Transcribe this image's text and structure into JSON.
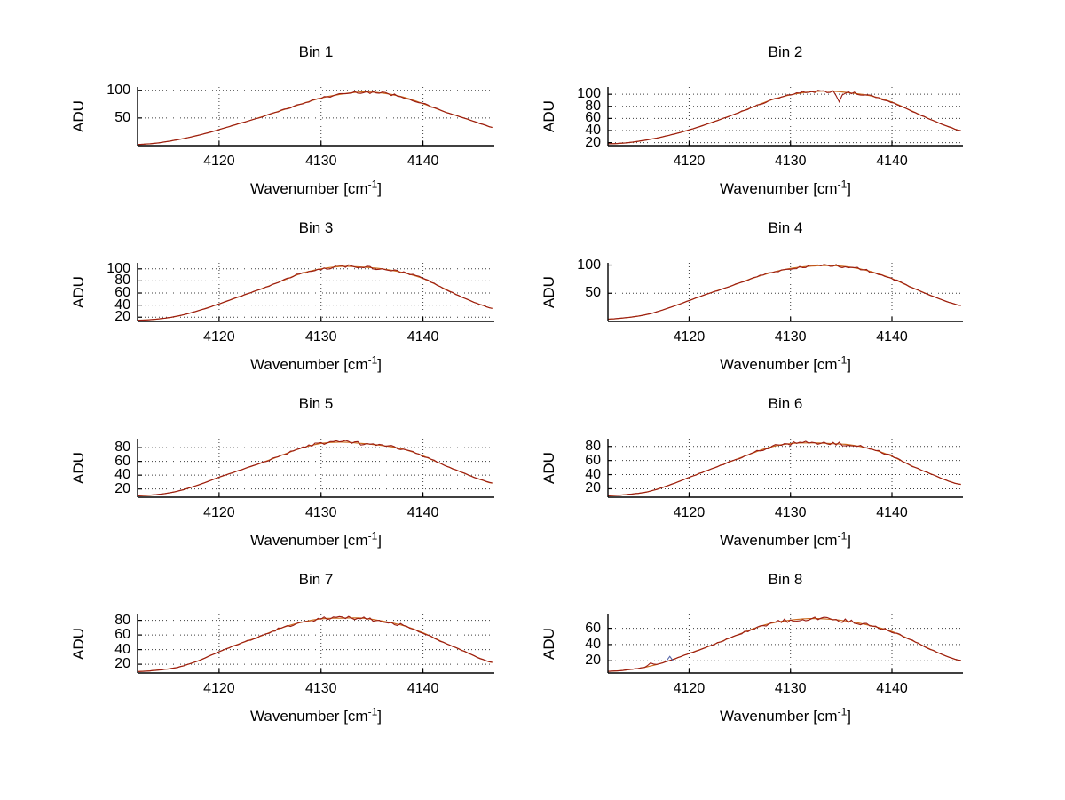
{
  "chart_data": {
    "type": "line",
    "layout": "4x2 grid of subplots",
    "ylabel": "ADU",
    "xlabel_main": "Wavenumber [cm",
    "xlabel_sup": "-1",
    "xlabel_end": "]",
    "xlim": [
      4112,
      4147
    ],
    "x_ticks": [
      4120,
      4130,
      4140
    ],
    "grid": "dotted",
    "legend": "none",
    "colors": {
      "data_line": "#9a1b12",
      "fit_line": "#cc6a1e",
      "axis": "#000000",
      "grid_dots": "#3c3c3c",
      "background": "#ffffff"
    },
    "bins": [
      {
        "title": "Bin 1",
        "ylim": [
          0,
          106
        ],
        "y_ticks": [
          50,
          100
        ],
        "points": [
          [
            4112,
            2
          ],
          [
            4114,
            5
          ],
          [
            4116,
            11
          ],
          [
            4118,
            19
          ],
          [
            4120,
            29
          ],
          [
            4122,
            40
          ],
          [
            4124,
            51
          ],
          [
            4126,
            63
          ],
          [
            4128,
            75
          ],
          [
            4130,
            86
          ],
          [
            4132,
            93
          ],
          [
            4134,
            97
          ],
          [
            4136,
            95
          ],
          [
            4138,
            88
          ],
          [
            4140,
            76
          ],
          [
            4142,
            62
          ],
          [
            4144,
            50
          ],
          [
            4146,
            38
          ],
          [
            4147,
            32
          ]
        ],
        "spikes": [],
        "artifacts": []
      },
      {
        "title": "Bin 2",
        "ylim": [
          15,
          112
        ],
        "y_ticks": [
          20,
          40,
          60,
          80,
          100
        ],
        "points": [
          [
            4112,
            18
          ],
          [
            4114,
            20
          ],
          [
            4116,
            25
          ],
          [
            4118,
            32
          ],
          [
            4120,
            41
          ],
          [
            4122,
            52
          ],
          [
            4124,
            64
          ],
          [
            4126,
            77
          ],
          [
            4128,
            90
          ],
          [
            4130,
            99
          ],
          [
            4132,
            104
          ],
          [
            4134,
            105
          ],
          [
            4136,
            102
          ],
          [
            4138,
            97
          ],
          [
            4140,
            87
          ],
          [
            4142,
            72
          ],
          [
            4144,
            57
          ],
          [
            4146,
            44
          ],
          [
            4147,
            39
          ]
        ],
        "spikes": [
          {
            "x": 4134.7,
            "dy": -15
          }
        ],
        "artifacts": []
      },
      {
        "title": "Bin 3",
        "ylim": [
          13,
          110
        ],
        "y_ticks": [
          20,
          40,
          60,
          80,
          100
        ],
        "points": [
          [
            4112,
            15
          ],
          [
            4114,
            17
          ],
          [
            4116,
            22
          ],
          [
            4118,
            31
          ],
          [
            4120,
            42
          ],
          [
            4122,
            54
          ],
          [
            4124,
            66
          ],
          [
            4126,
            79
          ],
          [
            4128,
            92
          ],
          [
            4130,
            100
          ],
          [
            4132,
            104
          ],
          [
            4134,
            103
          ],
          [
            4136,
            100
          ],
          [
            4138,
            94
          ],
          [
            4140,
            84
          ],
          [
            4142,
            68
          ],
          [
            4144,
            52
          ],
          [
            4146,
            39
          ],
          [
            4147,
            34
          ]
        ],
        "spikes": [],
        "artifacts": []
      },
      {
        "title": "Bin 4",
        "ylim": [
          0,
          104
        ],
        "y_ticks": [
          50,
          100
        ],
        "points": [
          [
            4112,
            4
          ],
          [
            4114,
            7
          ],
          [
            4116,
            13
          ],
          [
            4118,
            24
          ],
          [
            4120,
            37
          ],
          [
            4122,
            50
          ],
          [
            4124,
            62
          ],
          [
            4126,
            75
          ],
          [
            4128,
            86
          ],
          [
            4130,
            94
          ],
          [
            4132,
            98
          ],
          [
            4134,
            99
          ],
          [
            4136,
            96
          ],
          [
            4138,
            88
          ],
          [
            4140,
            76
          ],
          [
            4142,
            60
          ],
          [
            4144,
            45
          ],
          [
            4146,
            32
          ],
          [
            4147,
            28
          ]
        ],
        "spikes": [],
        "artifacts": []
      },
      {
        "title": "Bin 5",
        "ylim": [
          8,
          93
        ],
        "y_ticks": [
          20,
          40,
          60,
          80
        ],
        "points": [
          [
            4112,
            10
          ],
          [
            4114,
            12
          ],
          [
            4116,
            17
          ],
          [
            4118,
            26
          ],
          [
            4120,
            37
          ],
          [
            4122,
            47
          ],
          [
            4124,
            57
          ],
          [
            4126,
            68
          ],
          [
            4128,
            79
          ],
          [
            4130,
            86
          ],
          [
            4132,
            88
          ],
          [
            4134,
            86
          ],
          [
            4136,
            83
          ],
          [
            4138,
            78
          ],
          [
            4140,
            68
          ],
          [
            4142,
            55
          ],
          [
            4144,
            43
          ],
          [
            4146,
            32
          ],
          [
            4147,
            28
          ]
        ],
        "spikes": [],
        "artifacts": []
      },
      {
        "title": "Bin 6",
        "ylim": [
          8,
          91
        ],
        "y_ticks": [
          20,
          40,
          60,
          80
        ],
        "points": [
          [
            4112,
            10
          ],
          [
            4114,
            12
          ],
          [
            4116,
            16
          ],
          [
            4118,
            25
          ],
          [
            4120,
            36
          ],
          [
            4122,
            47
          ],
          [
            4124,
            58
          ],
          [
            4126,
            69
          ],
          [
            4128,
            79
          ],
          [
            4130,
            84
          ],
          [
            4132,
            85
          ],
          [
            4134,
            84
          ],
          [
            4136,
            82
          ],
          [
            4138,
            76
          ],
          [
            4140,
            66
          ],
          [
            4142,
            52
          ],
          [
            4144,
            40
          ],
          [
            4146,
            29
          ],
          [
            4147,
            26
          ]
        ],
        "spikes": [],
        "artifacts": []
      },
      {
        "title": "Bin 7",
        "ylim": [
          8,
          88
        ],
        "y_ticks": [
          20,
          40,
          60,
          80
        ],
        "points": [
          [
            4112,
            10
          ],
          [
            4114,
            12
          ],
          [
            4116,
            16
          ],
          [
            4118,
            25
          ],
          [
            4120,
            37
          ],
          [
            4122,
            48
          ],
          [
            4124,
            58
          ],
          [
            4126,
            69
          ],
          [
            4128,
            77
          ],
          [
            4130,
            82
          ],
          [
            4132,
            83
          ],
          [
            4134,
            83
          ],
          [
            4136,
            79
          ],
          [
            4138,
            73
          ],
          [
            4140,
            63
          ],
          [
            4142,
            50
          ],
          [
            4144,
            38
          ],
          [
            4146,
            26
          ],
          [
            4147,
            22
          ]
        ],
        "spikes": [],
        "artifacts": []
      },
      {
        "title": "Bin 8",
        "ylim": [
          5,
          77
        ],
        "y_ticks": [
          20,
          40,
          60
        ],
        "points": [
          [
            4112,
            7
          ],
          [
            4114,
            9
          ],
          [
            4116,
            13
          ],
          [
            4118,
            20
          ],
          [
            4120,
            29
          ],
          [
            4122,
            38
          ],
          [
            4124,
            48
          ],
          [
            4126,
            58
          ],
          [
            4128,
            66
          ],
          [
            4130,
            70
          ],
          [
            4132,
            72
          ],
          [
            4134,
            71
          ],
          [
            4136,
            68
          ],
          [
            4138,
            63
          ],
          [
            4140,
            56
          ],
          [
            4142,
            45
          ],
          [
            4144,
            33
          ],
          [
            4146,
            23
          ],
          [
            4147,
            20
          ]
        ],
        "spikes": [
          {
            "x": 4116.3,
            "dy": 4
          }
        ],
        "artifacts": [
          {
            "x": 4118.1,
            "dy": 5,
            "color": "#5566aa"
          }
        ]
      }
    ]
  }
}
